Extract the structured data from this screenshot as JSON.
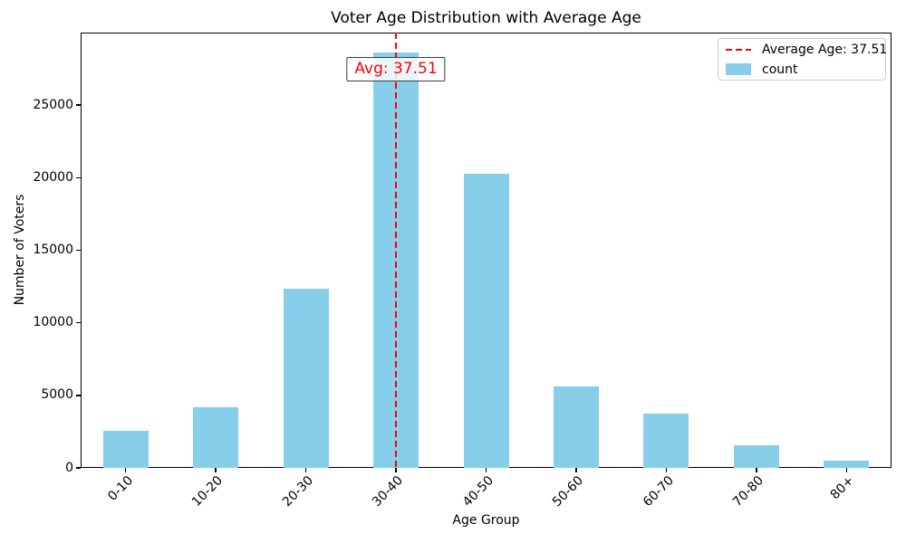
{
  "chart_data": {
    "type": "bar",
    "title": "Voter Age Distribution with Average Age",
    "xlabel": "Age Group",
    "ylabel": "Number of Voters",
    "categories": [
      "0-10",
      "10-20",
      "20-30",
      "30-40",
      "40-50",
      "50-60",
      "60-70",
      "70-80",
      "80+"
    ],
    "values": [
      2550,
      4180,
      12380,
      28600,
      20250,
      5630,
      3720,
      1560,
      490
    ],
    "ylim": [
      0,
      30000
    ],
    "yticks": [
      0,
      5000,
      10000,
      15000,
      20000,
      25000
    ],
    "bar_color": "#87CEEB",
    "grid": false,
    "legend_position": "upper right",
    "legend": [
      {
        "label": "Average Age: 37.51",
        "symbol": "dashed-line",
        "color": "#ff0000"
      },
      {
        "label": "count",
        "symbol": "patch",
        "color": "#87CEEB"
      }
    ],
    "average_line": {
      "value": 37.51,
      "category_index": 3,
      "color": "#ff0000",
      "style": "dashed"
    },
    "annotation": {
      "text": "Avg: 37.51",
      "color": "#ff0000"
    }
  }
}
